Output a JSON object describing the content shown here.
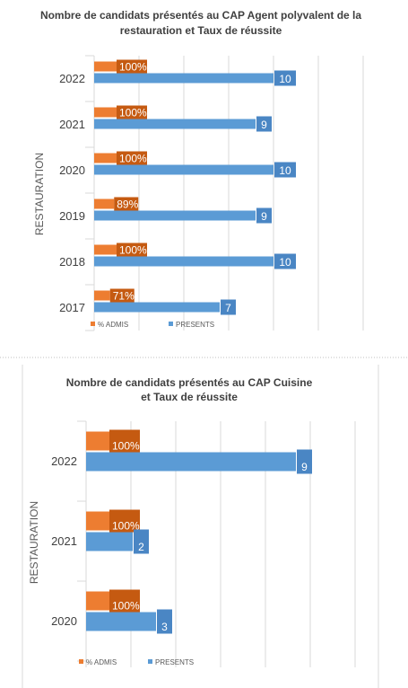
{
  "chart_data": [
    {
      "type": "bar",
      "orientation": "horizontal",
      "title_lines": [
        "Nombre de candidats présentés au CAP Agent polyvalent de la",
        "restauration et Taux de réussite"
      ],
      "ylabel": "RESTAURATION",
      "categories": [
        "2022",
        "2021",
        "2020",
        "2019",
        "2018",
        "2017"
      ],
      "series": [
        {
          "name": "% ADMIS",
          "values": [
            100,
            100,
            100,
            89,
            100,
            71
          ],
          "labels": [
            "100%",
            "100%",
            "100%",
            "89%",
            "100%",
            "71%"
          ],
          "color": "#ED7D31"
        },
        {
          "name": "PRESENTS",
          "values": [
            10,
            9,
            10,
            9,
            10,
            7
          ],
          "labels": [
            "10",
            "9",
            "10",
            "9",
            "10",
            "7"
          ],
          "color": "#5B9BD5"
        }
      ],
      "legend": "bottom",
      "grid": true
    },
    {
      "type": "bar",
      "orientation": "horizontal",
      "title_lines": [
        "Nombre de candidats présentés au CAP Cuisine",
        "et Taux de réussite"
      ],
      "ylabel": "RESTAURATION",
      "categories": [
        "2022",
        "2021",
        "2020"
      ],
      "series": [
        {
          "name": "% ADMIS",
          "values": [
            100,
            100,
            100
          ],
          "labels": [
            "100%",
            "100%",
            "100%"
          ],
          "color": "#ED7D31"
        },
        {
          "name": "PRESENTS",
          "values": [
            9,
            2,
            3
          ],
          "labels": [
            "9",
            "2",
            "3"
          ],
          "color": "#5B9BD5"
        }
      ],
      "legend": "bottom",
      "grid": true
    }
  ]
}
